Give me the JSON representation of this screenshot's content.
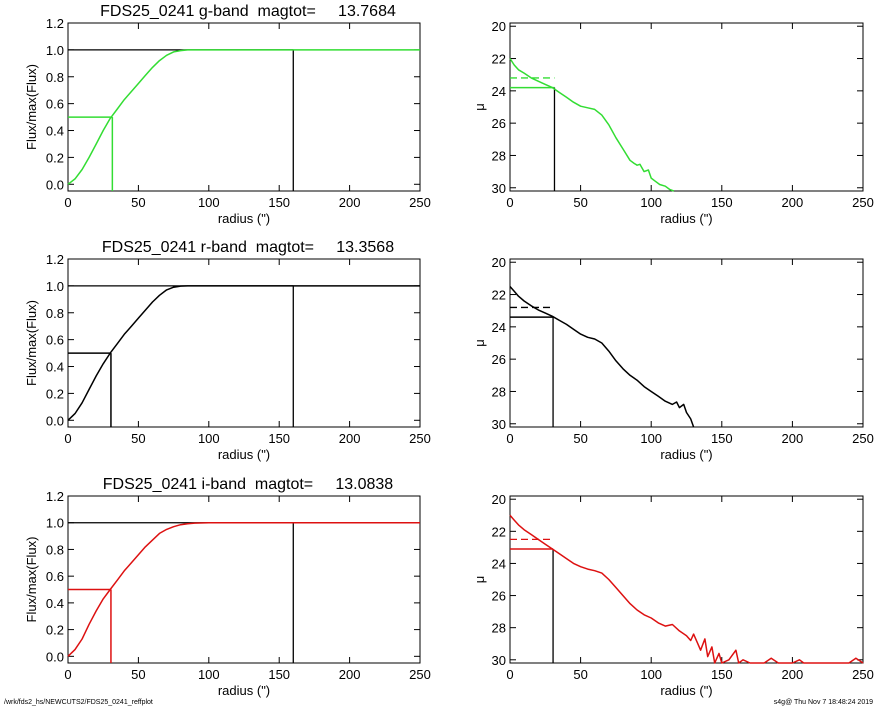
{
  "chart_data": [
    {
      "type": "line",
      "band": "g",
      "title": "FDS25_0241 g-band  magtot=     13.7684",
      "xlabel": "radius (\")",
      "ylabel": "Flux/max(Flux)",
      "xlim": [
        0,
        250
      ],
      "ylim": [
        -0.05,
        1.2
      ],
      "xticks": [
        "0",
        "50",
        "100",
        "150",
        "200",
        "250"
      ],
      "yticks": [
        "0.0",
        "0.2",
        "0.4",
        "0.6",
        "0.8",
        "1.0",
        "1.2"
      ],
      "color": "#33dd33",
      "series": [
        {
          "x": [
            0,
            5,
            10,
            15,
            20,
            25,
            30,
            35,
            40,
            45,
            50,
            55,
            60,
            65,
            70,
            75,
            80,
            85,
            90,
            100,
            110,
            120,
            130,
            140,
            150,
            160,
            180,
            200,
            220,
            240,
            250
          ],
          "y": [
            0,
            0.04,
            0.11,
            0.2,
            0.3,
            0.4,
            0.49,
            0.56,
            0.63,
            0.69,
            0.75,
            0.81,
            0.87,
            0.92,
            0.96,
            0.985,
            0.995,
            1.0,
            1.0,
            1.0,
            1.0,
            1.0,
            1.0,
            1.0,
            1.0,
            1.0,
            1.0,
            1.0,
            1.0,
            1.0,
            1.0
          ]
        }
      ],
      "reff": 31.5,
      "rmax": 160,
      "half": 0.5
    },
    {
      "type": "line",
      "band": "g",
      "title": "",
      "xlabel": "radius (\")",
      "ylabel": "μ",
      "xlim": [
        0,
        250
      ],
      "ylim": [
        30.2,
        19.8
      ],
      "xticks": [
        "0",
        "50",
        "100",
        "150",
        "200",
        "250"
      ],
      "yticks": [
        "20",
        "22",
        "24",
        "26",
        "28",
        "30"
      ],
      "color": "#33dd33",
      "series": [
        {
          "x": [
            0,
            3,
            6,
            10,
            15,
            20,
            25,
            30,
            35,
            40,
            45,
            50,
            55,
            60,
            65,
            70,
            75,
            80,
            85,
            88,
            90,
            92,
            95,
            98,
            100,
            103,
            106,
            110,
            113,
            116
          ],
          "y": [
            22.0,
            22.4,
            22.7,
            22.9,
            23.2,
            23.4,
            23.6,
            23.8,
            24.1,
            24.4,
            24.7,
            24.95,
            25.05,
            25.15,
            25.5,
            26.1,
            26.9,
            27.6,
            28.3,
            28.5,
            28.6,
            28.55,
            29.0,
            28.9,
            29.4,
            29.6,
            29.8,
            29.9,
            30.1,
            30.3
          ]
        }
      ],
      "reff": 31.5,
      "mu_eff": 23.8,
      "mu_mean": 23.2
    },
    {
      "type": "line",
      "band": "r",
      "title": "FDS25_0241 r-band  magtot=     13.3568",
      "xlabel": "radius (\")",
      "ylabel": "Flux/max(Flux)",
      "xlim": [
        0,
        250
      ],
      "ylim": [
        -0.05,
        1.2
      ],
      "xticks": [
        "0",
        "50",
        "100",
        "150",
        "200",
        "250"
      ],
      "yticks": [
        "0.0",
        "0.2",
        "0.4",
        "0.6",
        "0.8",
        "1.0",
        "1.2"
      ],
      "color": "#000000",
      "series": [
        {
          "x": [
            0,
            5,
            10,
            15,
            20,
            25,
            30,
            35,
            40,
            45,
            50,
            55,
            60,
            65,
            70,
            75,
            80,
            85,
            90,
            100,
            110,
            120,
            130,
            140,
            150,
            160,
            180,
            200,
            220,
            240,
            250
          ],
          "y": [
            0,
            0.05,
            0.13,
            0.23,
            0.33,
            0.42,
            0.5,
            0.57,
            0.64,
            0.7,
            0.76,
            0.82,
            0.88,
            0.93,
            0.97,
            0.99,
            0.998,
            1.0,
            1.0,
            1.0,
            1.0,
            1.0,
            1.0,
            1.0,
            1.0,
            1.0,
            1.0,
            1.0,
            1.0,
            1.0,
            1.0
          ]
        }
      ],
      "reff": 30.5,
      "rmax": 160,
      "half": 0.5
    },
    {
      "type": "line",
      "band": "r",
      "title": "",
      "xlabel": "radius (\")",
      "ylabel": "μ",
      "xlim": [
        0,
        250
      ],
      "ylim": [
        30.2,
        19.8
      ],
      "xticks": [
        "0",
        "50",
        "100",
        "150",
        "200",
        "250"
      ],
      "yticks": [
        "20",
        "22",
        "24",
        "26",
        "28",
        "30"
      ],
      "color": "#000000",
      "series": [
        {
          "x": [
            0,
            3,
            6,
            10,
            15,
            20,
            25,
            30,
            35,
            40,
            45,
            50,
            55,
            60,
            65,
            70,
            75,
            80,
            85,
            90,
            95,
            100,
            105,
            110,
            115,
            118,
            120,
            123,
            125,
            128,
            130
          ],
          "y": [
            21.5,
            21.8,
            22.1,
            22.4,
            22.7,
            22.95,
            23.15,
            23.35,
            23.6,
            23.85,
            24.15,
            24.45,
            24.65,
            24.75,
            25.0,
            25.5,
            26.1,
            26.6,
            27.0,
            27.3,
            27.7,
            28.0,
            28.3,
            28.6,
            28.8,
            28.65,
            29.0,
            28.8,
            29.3,
            29.7,
            30.3
          ]
        }
      ],
      "reff": 30.5,
      "mu_eff": 23.4,
      "mu_mean": 22.8
    },
    {
      "type": "line",
      "band": "i",
      "title": "FDS25_0241 i-band  magtot=     13.0838",
      "xlabel": "radius (\")",
      "ylabel": "Flux/max(Flux)",
      "xlim": [
        0,
        250
      ],
      "ylim": [
        -0.05,
        1.2
      ],
      "xticks": [
        "0",
        "50",
        "100",
        "150",
        "200",
        "250"
      ],
      "yticks": [
        "0.0",
        "0.2",
        "0.4",
        "0.6",
        "0.8",
        "1.0",
        "1.2"
      ],
      "color": "#dd1111",
      "series": [
        {
          "x": [
            0,
            5,
            10,
            15,
            20,
            25,
            30,
            35,
            40,
            45,
            50,
            55,
            60,
            65,
            70,
            75,
            80,
            85,
            90,
            100,
            110,
            120,
            130,
            140,
            150,
            160,
            180,
            200,
            220,
            240,
            250
          ],
          "y": [
            0,
            0.05,
            0.13,
            0.24,
            0.34,
            0.43,
            0.5,
            0.57,
            0.64,
            0.7,
            0.76,
            0.82,
            0.87,
            0.92,
            0.95,
            0.97,
            0.985,
            0.993,
            0.997,
            1.0,
            1.0,
            1.0,
            1.0,
            1.0,
            1.0,
            1.0,
            1.0,
            1.0,
            1.0,
            1.0,
            1.0
          ]
        }
      ],
      "reff": 30.5,
      "rmax": 160,
      "half": 0.5
    },
    {
      "type": "line",
      "band": "i",
      "title": "",
      "xlabel": "radius (\")",
      "ylabel": "μ",
      "xlim": [
        0,
        250
      ],
      "ylim": [
        30.2,
        19.8
      ],
      "xticks": [
        "0",
        "50",
        "100",
        "150",
        "200",
        "250"
      ],
      "yticks": [
        "20",
        "22",
        "24",
        "26",
        "28",
        "30"
      ],
      "color": "#dd1111",
      "series": [
        {
          "x": [
            0,
            3,
            6,
            10,
            15,
            20,
            25,
            30,
            35,
            40,
            45,
            50,
            55,
            60,
            65,
            70,
            75,
            80,
            85,
            90,
            95,
            100,
            105,
            110,
            115,
            120,
            125,
            128,
            130,
            133,
            135,
            138,
            140,
            143,
            145,
            148,
            150,
            155,
            160,
            162,
            165,
            170,
            175,
            180,
            185,
            190,
            195,
            200,
            205,
            208,
            210,
            215,
            220,
            230,
            240,
            245,
            250
          ],
          "y": [
            21.0,
            21.3,
            21.6,
            21.9,
            22.2,
            22.5,
            22.8,
            23.1,
            23.4,
            23.7,
            24.0,
            24.2,
            24.35,
            24.45,
            24.6,
            25.0,
            25.5,
            26.0,
            26.5,
            26.9,
            27.2,
            27.4,
            27.7,
            27.9,
            27.8,
            28.2,
            28.5,
            28.8,
            28.4,
            29.0,
            29.4,
            28.7,
            29.8,
            29.2,
            30.2,
            29.6,
            30.3,
            30.0,
            29.4,
            30.3,
            30.0,
            30.3,
            30.3,
            30.3,
            29.9,
            30.3,
            30.3,
            30.3,
            30.0,
            30.3,
            30.3,
            30.3,
            30.3,
            30.3,
            30.3,
            29.9,
            30.3
          ]
        }
      ],
      "reff": 30.5,
      "mu_eff": 23.1,
      "mu_mean": 22.5
    }
  ],
  "footer": {
    "left": "/wrk/fds2_hs/NEWCUTS2/FDS25_0241_reffplot",
    "right": "s4g@  Thu Nov  7 18:48:24 2019"
  }
}
